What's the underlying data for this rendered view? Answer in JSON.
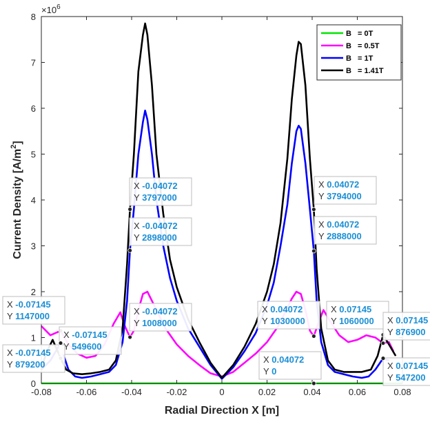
{
  "chart_data": {
    "type": "line",
    "xlabel": "Radial Direction X [m]",
    "ylabel": "Current Density [A/m2]",
    "ylabel_main": "Current Density [A/m",
    "ylabel_sup": "2",
    "ylabel_end": "]",
    "y_multiplier": "×10",
    "y_multiplier_exp": "6",
    "xlim": [
      -0.08,
      0.08
    ],
    "ylim": [
      0,
      8000000
    ],
    "xticks": [
      -0.08,
      -0.06,
      -0.04,
      -0.02,
      0,
      0.02,
      0.04,
      0.06,
      0.08
    ],
    "xtick_labels": [
      "-0.08",
      "-0.06",
      "-0.04",
      "-0.02",
      "0",
      "0.02",
      "0.04",
      "0.06",
      "0.08"
    ],
    "yticks": [
      0,
      1000000,
      2000000,
      3000000,
      4000000,
      5000000,
      6000000,
      7000000,
      8000000
    ],
    "ytick_labels": [
      "0",
      "1",
      "2",
      "3",
      "4",
      "5",
      "6",
      "7",
      "8"
    ],
    "grid": false,
    "legend_position": "top-right",
    "series": [
      {
        "name": "B = 0T",
        "label_key": "B",
        "label_rest": " = 0T",
        "color": "#00e600",
        "points": [
          [
            -0.08,
            0
          ],
          [
            0.08,
            0
          ]
        ]
      },
      {
        "name": "B = 0.5T",
        "label_key": "B",
        "label_rest": " = 0.5T",
        "color": "#ff00ff",
        "points": [
          [
            -0.08,
            1250000
          ],
          [
            -0.076,
            1050000
          ],
          [
            -0.07145,
            1147000
          ],
          [
            -0.068,
            850000
          ],
          [
            -0.064,
            650000
          ],
          [
            -0.06,
            560000
          ],
          [
            -0.056,
            600000
          ],
          [
            -0.052,
            850000
          ],
          [
            -0.048,
            1300000
          ],
          [
            -0.045,
            1550000
          ],
          [
            -0.043,
            1250000
          ],
          [
            -0.04072,
            1008000
          ],
          [
            -0.039,
            1150000
          ],
          [
            -0.037,
            1600000
          ],
          [
            -0.035,
            1950000
          ],
          [
            -0.033,
            2000000
          ],
          [
            -0.031,
            1800000
          ],
          [
            -0.028,
            1500000
          ],
          [
            -0.025,
            1200000
          ],
          [
            -0.02,
            850000
          ],
          [
            -0.015,
            600000
          ],
          [
            -0.01,
            400000
          ],
          [
            -0.005,
            220000
          ],
          [
            0,
            150000
          ],
          [
            0.005,
            250000
          ],
          [
            0.01,
            450000
          ],
          [
            0.015,
            650000
          ],
          [
            0.02,
            900000
          ],
          [
            0.025,
            1250000
          ],
          [
            0.028,
            1550000
          ],
          [
            0.031,
            1850000
          ],
          [
            0.033,
            2000000
          ],
          [
            0.035,
            1950000
          ],
          [
            0.037,
            1600000
          ],
          [
            0.039,
            1150000
          ],
          [
            0.04072,
            1030000
          ],
          [
            0.043,
            1350000
          ],
          [
            0.045,
            1600000
          ],
          [
            0.048,
            1350000
          ],
          [
            0.052,
            1050000
          ],
          [
            0.056,
            900000
          ],
          [
            0.06,
            950000
          ],
          [
            0.064,
            1050000
          ],
          [
            0.068,
            1000000
          ],
          [
            0.07145,
            876900
          ],
          [
            0.074,
            900000
          ],
          [
            0.076,
            700000
          ]
        ]
      },
      {
        "name": "B = 1T",
        "label_key": "B",
        "label_rest": " = 1T",
        "color": "#0000ff",
        "points": [
          [
            -0.08,
            300000
          ],
          [
            -0.076,
            500000
          ],
          [
            -0.07145,
            879200
          ],
          [
            -0.07,
            600000
          ],
          [
            -0.068,
            300000
          ],
          [
            -0.065,
            150000
          ],
          [
            -0.062,
            120000
          ],
          [
            -0.058,
            150000
          ],
          [
            -0.054,
            200000
          ],
          [
            -0.05,
            250000
          ],
          [
            -0.047,
            400000
          ],
          [
            -0.044,
            900000
          ],
          [
            -0.042,
            1800000
          ],
          [
            -0.04072,
            2898000
          ],
          [
            -0.039,
            3800000
          ],
          [
            -0.037,
            5000000
          ],
          [
            -0.035,
            5700000
          ],
          [
            -0.034,
            5950000
          ],
          [
            -0.033,
            5750000
          ],
          [
            -0.031,
            5000000
          ],
          [
            -0.029,
            4000000
          ],
          [
            -0.026,
            3000000
          ],
          [
            -0.023,
            2300000
          ],
          [
            -0.02,
            1800000
          ],
          [
            -0.015,
            1200000
          ],
          [
            -0.01,
            800000
          ],
          [
            -0.005,
            400000
          ],
          [
            0,
            100000
          ],
          [
            0.005,
            350000
          ],
          [
            0.01,
            700000
          ],
          [
            0.015,
            1100000
          ],
          [
            0.02,
            1700000
          ],
          [
            0.023,
            2200000
          ],
          [
            0.026,
            3000000
          ],
          [
            0.029,
            3900000
          ],
          [
            0.031,
            4800000
          ],
          [
            0.033,
            5500000
          ],
          [
            0.034,
            5620000
          ],
          [
            0.035,
            5550000
          ],
          [
            0.037,
            4800000
          ],
          [
            0.039,
            3800000
          ],
          [
            0.04072,
            2888000
          ],
          [
            0.042,
            1800000
          ],
          [
            0.044,
            900000
          ],
          [
            0.047,
            400000
          ],
          [
            0.05,
            250000
          ],
          [
            0.054,
            200000
          ],
          [
            0.058,
            150000
          ],
          [
            0.062,
            120000
          ],
          [
            0.065,
            150000
          ],
          [
            0.068,
            300000
          ],
          [
            0.07145,
            547200
          ],
          [
            0.074,
            500000
          ]
        ]
      },
      {
        "name": "B = 1.41T",
        "label_key": "B",
        "label_rest": " = 1.41T",
        "color": "#000000",
        "points": [
          [
            -0.08,
            300000
          ],
          [
            -0.078,
            650000
          ],
          [
            -0.075,
            950000
          ],
          [
            -0.07145,
            549600
          ],
          [
            -0.069,
            300000
          ],
          [
            -0.066,
            220000
          ],
          [
            -0.062,
            200000
          ],
          [
            -0.058,
            220000
          ],
          [
            -0.054,
            250000
          ],
          [
            -0.05,
            300000
          ],
          [
            -0.047,
            500000
          ],
          [
            -0.044,
            1200000
          ],
          [
            -0.042,
            2600000
          ],
          [
            -0.04072,
            3797000
          ],
          [
            -0.039,
            5000000
          ],
          [
            -0.037,
            6800000
          ],
          [
            -0.035,
            7600000
          ],
          [
            -0.034,
            7850000
          ],
          [
            -0.033,
            7600000
          ],
          [
            -0.031,
            6500000
          ],
          [
            -0.029,
            5000000
          ],
          [
            -0.026,
            3700000
          ],
          [
            -0.023,
            2700000
          ],
          [
            -0.02,
            2100000
          ],
          [
            -0.015,
            1400000
          ],
          [
            -0.01,
            900000
          ],
          [
            -0.005,
            450000
          ],
          [
            0,
            120000
          ],
          [
            0.005,
            400000
          ],
          [
            0.01,
            800000
          ],
          [
            0.015,
            1300000
          ],
          [
            0.02,
            2000000
          ],
          [
            0.023,
            2600000
          ],
          [
            0.026,
            3500000
          ],
          [
            0.029,
            4900000
          ],
          [
            0.031,
            6200000
          ],
          [
            0.033,
            7150000
          ],
          [
            0.034,
            7450000
          ],
          [
            0.035,
            7400000
          ],
          [
            0.037,
            6500000
          ],
          [
            0.039,
            4900000
          ],
          [
            0.04072,
            3794000
          ],
          [
            0.042,
            2500000
          ],
          [
            0.044,
            1200000
          ],
          [
            0.047,
            500000
          ],
          [
            0.05,
            300000
          ],
          [
            0.054,
            250000
          ],
          [
            0.058,
            250000
          ],
          [
            0.062,
            250000
          ],
          [
            0.066,
            300000
          ],
          [
            0.069,
            600000
          ],
          [
            0.07145,
            1060000
          ],
          [
            0.074,
            850000
          ],
          [
            0.077,
            600000
          ]
        ]
      }
    ],
    "datatips": [
      {
        "x": -0.04072,
        "y": 3797000,
        "xtext": "-0.04072",
        "ytext": "3797000"
      },
      {
        "x": -0.04072,
        "y": 2898000,
        "xtext": "-0.04072",
        "ytext": "2898000"
      },
      {
        "x": -0.04072,
        "y": 1008000,
        "xtext": "-0.04072",
        "ytext": "1008000"
      },
      {
        "x": -0.07145,
        "y": 1147000,
        "xtext": "-0.07145",
        "ytext": "1147000"
      },
      {
        "x": -0.07145,
        "y": 549600,
        "xtext": "-0.07145",
        "ytext": "549600"
      },
      {
        "x": -0.07145,
        "y": 879200,
        "xtext": "-0.07145",
        "ytext": "879200"
      },
      {
        "x": 0.04072,
        "y": 3794000,
        "xtext": "0.04072",
        "ytext": "3794000"
      },
      {
        "x": 0.04072,
        "y": 2888000,
        "xtext": "0.04072",
        "ytext": "2888000"
      },
      {
        "x": 0.04072,
        "y": 1030000,
        "xtext": "0.04072",
        "ytext": "1030000"
      },
      {
        "x": 0.04072,
        "y": 0,
        "xtext": "0.04072",
        "ytext": "0"
      },
      {
        "x": 0.07145,
        "y": 1060000,
        "xtext": "0.07145",
        "ytext": "1060000"
      },
      {
        "x": 0.07145,
        "y": 876900,
        "xtext": "0.07145",
        "ytext": "876900"
      },
      {
        "x": 0.07145,
        "y": 547200,
        "xtext": "0.07145",
        "ytext": "547200"
      }
    ],
    "tip_x_prefix": "X ",
    "tip_y_prefix": "Y "
  }
}
